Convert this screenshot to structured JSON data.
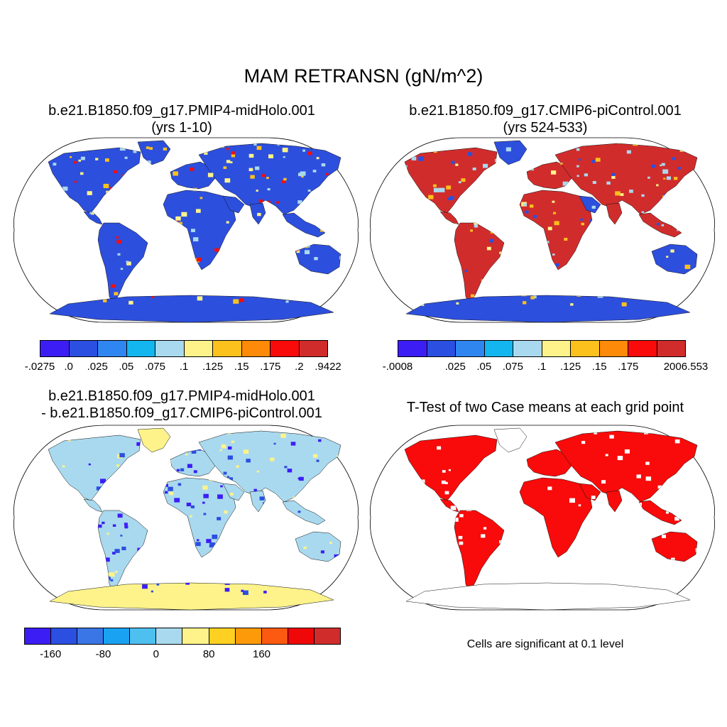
{
  "title": "MAM RETRANSN (gN/m^2)",
  "panels": [
    {
      "id": "case1",
      "title_line1": "b.e21.B1850.f09_g17.PMIP4-midHolo.001",
      "title_line2": "(yrs 1-10)",
      "colorbar": {
        "colors": [
          "#3c1ef5",
          "#2b4fe0",
          "#2f86f0",
          "#13b6ee",
          "#a9d9ef",
          "#fdf38a",
          "#fcc11d",
          "#fd8a09",
          "#f80b0a",
          "#d12c2c"
        ],
        "labels": [
          "-.0275",
          ".0",
          ".025",
          ".05",
          ".075",
          ".1",
          ".125",
          ".15",
          ".175",
          ".2",
          ".9422"
        ]
      }
    },
    {
      "id": "case2",
      "title_line1": "b.e21.B1850.f09_g17.CMIP6-piControl.001",
      "title_line2": "(yrs 524-533)",
      "colorbar": {
        "colors": [
          "#3c1ef5",
          "#2b4fe0",
          "#2f86f0",
          "#13b6ee",
          "#a9d9ef",
          "#fdf38a",
          "#fcc11d",
          "#fd8a09",
          "#f80b0a",
          "#d12c2c"
        ],
        "labels": [
          "-.0008",
          "",
          ".025",
          ".05",
          ".075",
          ".1",
          ".125",
          ".15",
          ".175",
          "",
          "2006.553"
        ]
      }
    },
    {
      "id": "difference",
      "title_line1": "b.e21.B1850.f09_g17.PMIP4-midHolo.001",
      "title_line2": "- b.e21.B1850.f09_g17.CMIP6-piControl.001",
      "colorbar": {
        "colors": [
          "#3c1ef5",
          "#2b4fe0",
          "#3a76e6",
          "#1aa2f2",
          "#4ec0f0",
          "#a9d9ef",
          "#fdf38a",
          "#fdd021",
          "#fd9a09",
          "#fc5a10",
          "#f00707",
          "#d12c2c"
        ],
        "labels": [
          "",
          "-160",
          "",
          "-80",
          "",
          "0",
          "",
          "80",
          "",
          "160",
          "",
          ""
        ]
      }
    },
    {
      "id": "ttest",
      "title_line1": "T-Test of two Case means at each grid point",
      "note": "Cells are significant at 0.1 level"
    }
  ],
  "map_fill": {
    "case1": {
      "base": "#2d4fdd",
      "accent": [
        "#fdf38a",
        "#a9d9ef",
        "#f80b0a",
        "#fcc11d"
      ]
    },
    "case2": {
      "base": "#d12c2c",
      "accent": [
        "#2d4fdd",
        "#fdf38a",
        "#a9d9ef",
        "#fcc11d"
      ]
    },
    "difference": {
      "base": "#a9d9ef",
      "accent": [
        "#2b4fe0",
        "#fdf38a",
        "#3c1ef5"
      ]
    },
    "ttest": {
      "base": "#f80b0a",
      "accent": [
        "#ffffff"
      ]
    }
  }
}
